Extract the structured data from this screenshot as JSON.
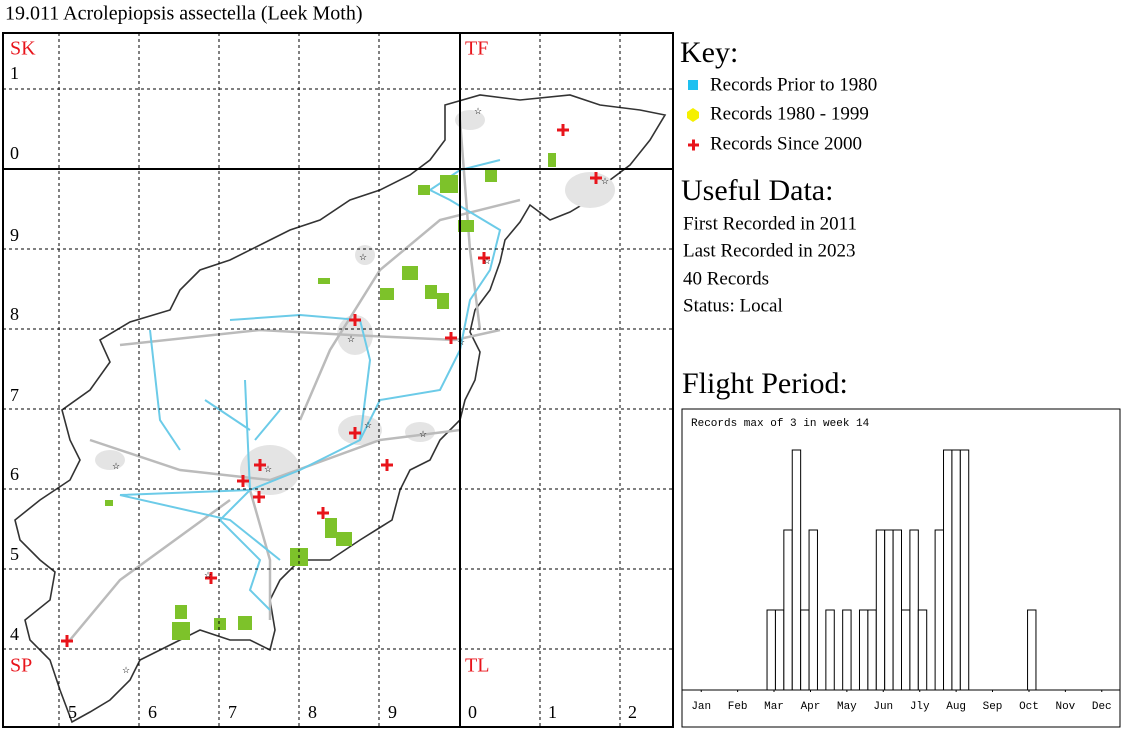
{
  "title": "19.011 Acrolepiopsis assectella (Leek Moth)",
  "map": {
    "square_labels": [
      "SK",
      "TF",
      "SP",
      "TL"
    ],
    "row_labels": [
      "1",
      "0",
      "9",
      "8",
      "7",
      "6",
      "5",
      "4"
    ],
    "column_labels": [
      "5",
      "6",
      "7",
      "8",
      "9",
      "0",
      "1",
      "2"
    ]
  },
  "key": {
    "title": "Key:",
    "items": [
      "Records Prior to 1980",
      "Records 1980 - 1999",
      "Records Since 2000"
    ]
  },
  "useful_data": {
    "title": "Useful Data:",
    "lines": [
      "First Recorded in 2011",
      "Last Recorded in 2023",
      "40 Records",
      "Status: Local"
    ]
  },
  "chart_data": {
    "type": "bar",
    "title": "Flight Period:",
    "annotation": "Records max of 3 in week 14",
    "x": [
      1,
      2,
      3,
      4,
      5,
      6,
      7,
      8,
      9,
      10,
      11,
      12,
      13,
      14,
      15,
      16,
      17,
      18,
      19,
      20,
      21,
      22,
      23,
      24,
      25,
      26,
      27,
      28,
      29,
      30,
      31,
      32,
      33,
      34,
      35,
      36,
      37,
      38,
      39,
      40,
      41,
      42,
      43,
      44,
      45,
      46,
      47,
      48,
      49,
      50,
      51,
      52
    ],
    "values": [
      0,
      0,
      0,
      0,
      0,
      0,
      0,
      0,
      0,
      0,
      1,
      1,
      2,
      3,
      1,
      2,
      0,
      1,
      0,
      1,
      0,
      1,
      1,
      2,
      2,
      2,
      1,
      2,
      1,
      0,
      2,
      3,
      3,
      3,
      0,
      0,
      0,
      0,
      0,
      0,
      0,
      1,
      0,
      0,
      0,
      0,
      0,
      0,
      0,
      0,
      0,
      0
    ],
    "color": "#ffffff",
    "xlim": [
      0.5,
      52.5
    ],
    "ylim": [
      0,
      3.5
    ],
    "xticks": [
      {
        "value": 2.67,
        "label": "Jan"
      },
      {
        "value": 7,
        "label": "Feb"
      },
      {
        "value": 11.33,
        "label": "Mar"
      },
      {
        "value": 15.67,
        "label": "Apr"
      },
      {
        "value": 20,
        "label": "May"
      },
      {
        "value": 24.33,
        "label": "Jun"
      },
      {
        "value": 28.67,
        "label": "Jly"
      },
      {
        "value": 33,
        "label": "Aug"
      },
      {
        "value": 37.33,
        "label": "Sep"
      },
      {
        "value": 41.67,
        "label": "Oct"
      },
      {
        "value": 46,
        "label": "Nov"
      },
      {
        "value": 50.33,
        "label": "Dec"
      }
    ]
  }
}
